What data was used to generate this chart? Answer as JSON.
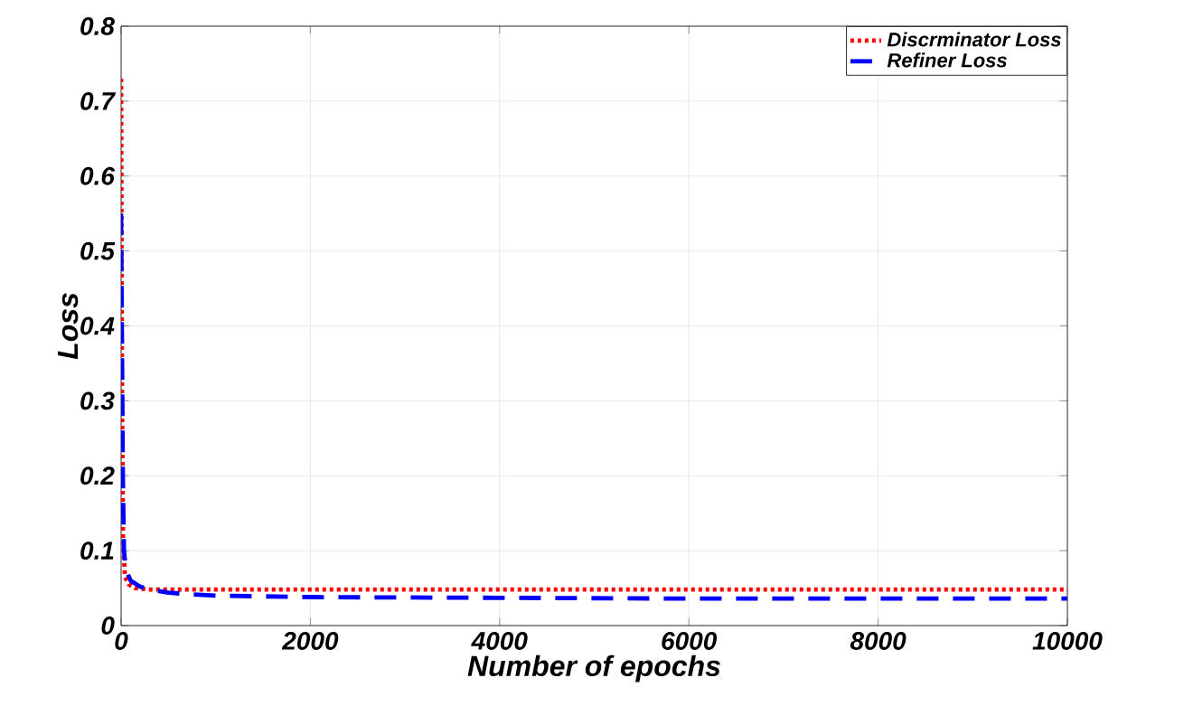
{
  "chart_data": {
    "type": "line",
    "xlabel": "Number of epochs",
    "ylabel": "Loss",
    "xlim": [
      0,
      10000
    ],
    "ylim": [
      0,
      0.8
    ],
    "xticks": [
      0,
      2000,
      4000,
      6000,
      8000,
      10000
    ],
    "yticks": [
      0,
      0.1,
      0.2,
      0.3,
      0.4,
      0.5,
      0.6,
      0.7,
      0.8
    ],
    "grid": true,
    "legend": "top right",
    "marker": "none",
    "series": [
      {
        "name": "Discrminator Loss",
        "color": "#ff0000",
        "line_style": "dotted",
        "x": [
          0,
          5,
          10,
          20,
          40,
          80,
          150,
          300,
          1000,
          3000,
          6000,
          10000
        ],
        "values": [
          0.73,
          0.5,
          0.3,
          0.12,
          0.065,
          0.055,
          0.05,
          0.048,
          0.048,
          0.048,
          0.048,
          0.048
        ]
      },
      {
        "name": "Refiner Loss",
        "color": "#0000ff",
        "line_style": "dashed",
        "x": [
          0,
          10,
          20,
          30,
          50,
          100,
          200,
          300,
          500,
          700,
          1000,
          2000,
          4000,
          6000,
          8000,
          10000
        ],
        "values": [
          0.55,
          0.35,
          0.18,
          0.1,
          0.075,
          0.06,
          0.052,
          0.048,
          0.044,
          0.042,
          0.04,
          0.038,
          0.037,
          0.036,
          0.036,
          0.036
        ]
      }
    ]
  }
}
